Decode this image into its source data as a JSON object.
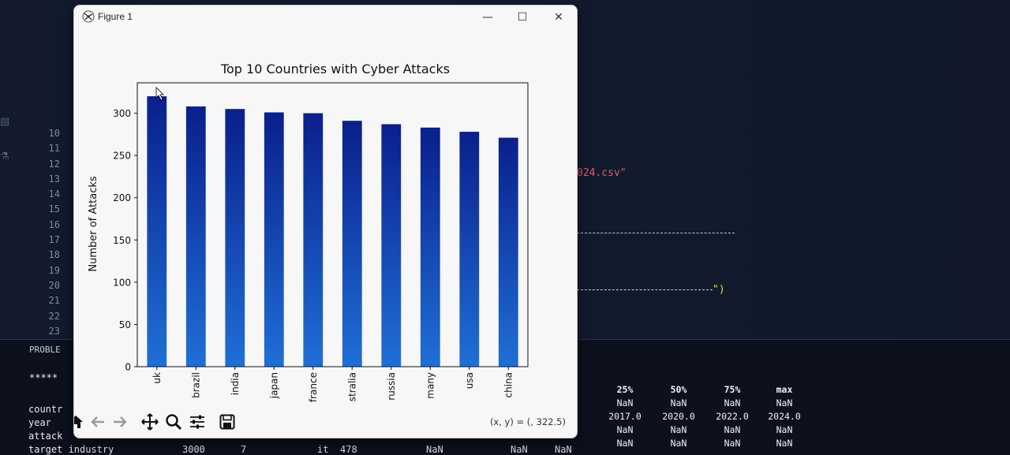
{
  "editor": {
    "line_numbers": [
      "10",
      "11",
      "12",
      "13",
      "14",
      "15",
      "16",
      "17",
      "18",
      "19",
      "20",
      "21",
      "22",
      "23"
    ],
    "code_fragment_1": "024.csv\"",
    "code_fragment_2": "\")",
    "colors": {
      "string": "#e05a6a",
      "paren": "#f5d142"
    }
  },
  "terminal": {
    "panel_label": "PROBLE",
    "stars": "*****",
    "row_labels": [
      "countr",
      "year",
      "attack",
      "target industry"
    ],
    "partial_row": {
      "c1": "3000",
      "c2": "7",
      "c3": "it",
      "c4": "478",
      "c5": "NaN",
      "c6": "NaN",
      "c7": "NaN"
    },
    "stats": [
      {
        "header": "25%",
        "values": [
          "NaN",
          "2017.0",
          "NaN",
          "NaN"
        ]
      },
      {
        "header": "50%",
        "values": [
          "NaN",
          "2020.0",
          "NaN",
          "NaN"
        ]
      },
      {
        "header": "75%",
        "values": [
          "NaN",
          "2022.0",
          "NaN",
          "NaN"
        ]
      },
      {
        "header": "max",
        "values": [
          "NaN",
          "2024.0",
          "NaN",
          "NaN"
        ]
      }
    ]
  },
  "window": {
    "title": "Figure 1",
    "minimize_glyph": "—",
    "maximize_glyph": "☐",
    "close_glyph": "✕"
  },
  "toolbar": {
    "icons": [
      "home-icon",
      "back-icon",
      "forward-icon",
      "pan-icon",
      "zoom-icon",
      "configure-icon",
      "save-icon"
    ],
    "coords_text": "(x, y) = (, 322.5)"
  },
  "chart_data": {
    "type": "bar",
    "title": "Top 10 Countries with Cyber Attacks",
    "xlabel": "",
    "ylabel": "Number of Attacks",
    "categories": [
      "uk",
      "brazil",
      "india",
      "japan",
      "france",
      "stralia",
      "russia",
      "many",
      "usa",
      "china"
    ],
    "values": [
      320,
      308,
      305,
      301,
      300,
      291,
      287,
      283,
      278,
      271
    ],
    "ylim": [
      0,
      336
    ],
    "yticks": [
      0,
      50,
      100,
      150,
      200,
      250,
      300
    ],
    "grid": false,
    "bar_colors": {
      "top": "#0a1f8c",
      "bottom": "#1f6fd6"
    }
  }
}
